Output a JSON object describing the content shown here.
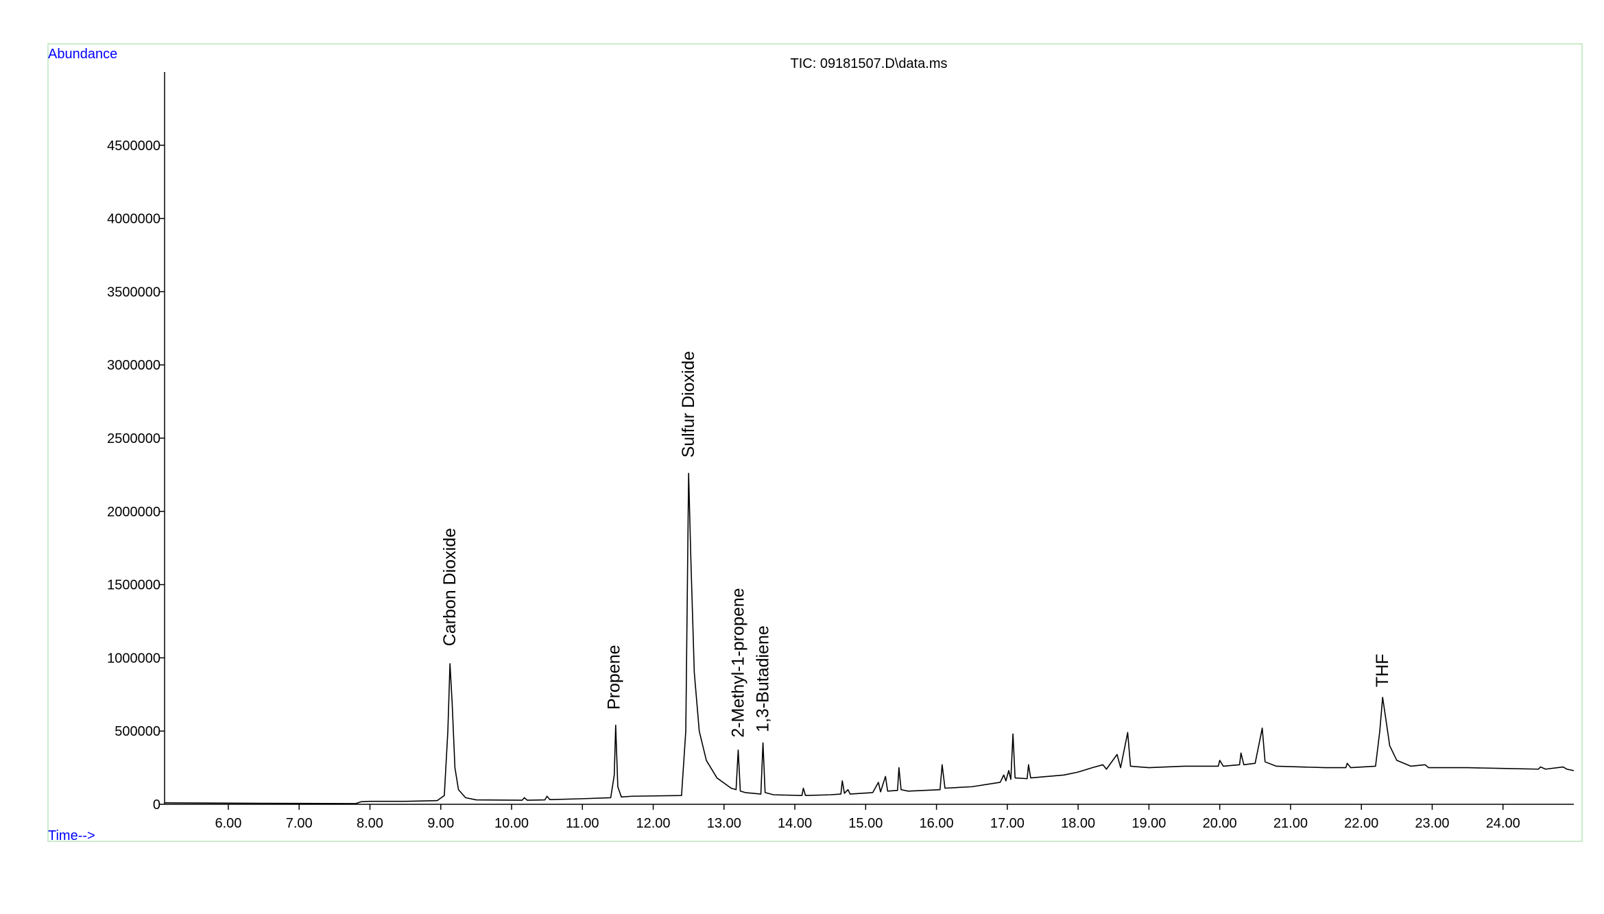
{
  "chart_data": {
    "type": "line",
    "title": "TIC: 09181507.D\\data.ms",
    "ylabel": "Abundance",
    "xlabel": "Time-->",
    "color": "#000000",
    "frame_color": "#b8e6b8",
    "label_color": "#0000ff",
    "xlim": [
      5.1,
      25.0
    ],
    "ylim": [
      0,
      5000000
    ],
    "xticks": [
      {
        "value": 6,
        "label": "6.00"
      },
      {
        "value": 7,
        "label": "7.00"
      },
      {
        "value": 8,
        "label": "8.00"
      },
      {
        "value": 9,
        "label": "9.00"
      },
      {
        "value": 10,
        "label": "10.00"
      },
      {
        "value": 11,
        "label": "11.00"
      },
      {
        "value": 12,
        "label": "12.00"
      },
      {
        "value": 13,
        "label": "13.00"
      },
      {
        "value": 14,
        "label": "14.00"
      },
      {
        "value": 15,
        "label": "15.00"
      },
      {
        "value": 16,
        "label": "16.00"
      },
      {
        "value": 17,
        "label": "17.00"
      },
      {
        "value": 18,
        "label": "18.00"
      },
      {
        "value": 19,
        "label": "19.00"
      },
      {
        "value": 20,
        "label": "20.00"
      },
      {
        "value": 21,
        "label": "21.00"
      },
      {
        "value": 22,
        "label": "22.00"
      },
      {
        "value": 23,
        "label": "23.00"
      },
      {
        "value": 24,
        "label": "24.00"
      }
    ],
    "yticks": [
      0,
      500000,
      1000000,
      1500000,
      2000000,
      2500000,
      3000000,
      3500000,
      4000000,
      4500000
    ],
    "x": [
      5.1,
      6.0,
      7.0,
      7.8,
      7.88,
      8.0,
      8.5,
      8.95,
      9.05,
      9.1,
      9.13,
      9.16,
      9.2,
      9.25,
      9.35,
      9.5,
      10.15,
      10.18,
      10.22,
      10.47,
      10.5,
      10.54,
      11.0,
      11.4,
      11.45,
      11.47,
      11.5,
      11.55,
      11.7,
      12.4,
      12.46,
      12.5,
      12.53,
      12.58,
      12.65,
      12.75,
      12.9,
      13.1,
      13.17,
      13.2,
      13.23,
      13.3,
      13.52,
      13.55,
      13.58,
      13.7,
      14.1,
      14.12,
      14.15,
      14.5,
      14.65,
      14.67,
      14.7,
      14.75,
      14.78,
      15.1,
      15.18,
      15.21,
      15.28,
      15.31,
      15.45,
      15.47,
      15.5,
      15.6,
      16.05,
      16.08,
      16.12,
      16.5,
      16.9,
      16.95,
      16.98,
      17.02,
      17.05,
      17.08,
      17.11,
      17.28,
      17.3,
      17.33,
      17.8,
      18.0,
      18.2,
      18.35,
      18.4,
      18.55,
      18.6,
      18.7,
      18.74,
      19.0,
      19.5,
      19.98,
      20.0,
      20.05,
      20.28,
      20.3,
      20.34,
      20.5,
      20.6,
      20.64,
      20.8,
      21.5,
      21.78,
      21.8,
      21.85,
      22.2,
      22.26,
      22.3,
      22.34,
      22.4,
      22.5,
      22.7,
      22.9,
      22.95,
      23.5,
      24.0,
      24.5,
      24.53,
      24.6,
      24.85,
      24.9,
      25.0
    ],
    "values": [
      10000,
      8000,
      6000,
      5000,
      18000,
      20000,
      20000,
      25000,
      60000,
      500000,
      960000,
      700000,
      250000,
      100000,
      45000,
      30000,
      28000,
      45000,
      28000,
      30000,
      55000,
      32000,
      38000,
      45000,
      200000,
      540000,
      120000,
      50000,
      55000,
      60000,
      500000,
      2260000,
      1700000,
      900000,
      500000,
      300000,
      180000,
      110000,
      100000,
      370000,
      90000,
      80000,
      70000,
      420000,
      80000,
      65000,
      60000,
      110000,
      60000,
      65000,
      70000,
      160000,
      75000,
      100000,
      70000,
      80000,
      150000,
      85000,
      190000,
      90000,
      95000,
      250000,
      100000,
      90000,
      100000,
      270000,
      110000,
      120000,
      150000,
      200000,
      160000,
      230000,
      170000,
      480000,
      180000,
      175000,
      270000,
      180000,
      200000,
      220000,
      250000,
      270000,
      240000,
      340000,
      250000,
      490000,
      260000,
      250000,
      260000,
      260000,
      300000,
      260000,
      270000,
      350000,
      270000,
      280000,
      520000,
      290000,
      260000,
      250000,
      250000,
      280000,
      250000,
      260000,
      500000,
      730000,
      600000,
      400000,
      300000,
      260000,
      270000,
      250000,
      250000,
      245000,
      240000,
      255000,
      240000,
      255000,
      240000,
      230000
    ],
    "annotations": [
      {
        "text": "Carbon Dioxide",
        "x": 9.13,
        "y": 1080000
      },
      {
        "text": "Propene",
        "x": 11.45,
        "y": 646000
      },
      {
        "text": "Sulfur Dioxide",
        "x": 12.5,
        "y": 2367000
      },
      {
        "text": "2-Methyl-1-propene",
        "x": 13.2,
        "y": 456000
      },
      {
        "text": "1,3-Butadiene",
        "x": 13.55,
        "y": 492000
      },
      {
        "text": "THF",
        "x": 22.3,
        "y": 800000
      }
    ]
  }
}
